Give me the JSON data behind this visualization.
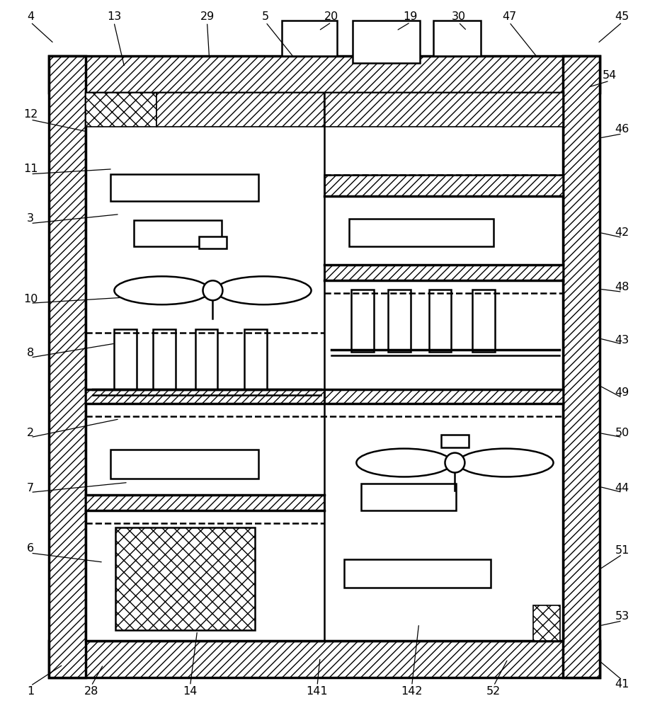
{
  "fig_width": 9.18,
  "fig_height": 10.0,
  "bg_color": "#ffffff",
  "lc": "#000000",
  "lw_thin": 1.2,
  "lw_med": 1.8,
  "lw_thick": 2.5
}
